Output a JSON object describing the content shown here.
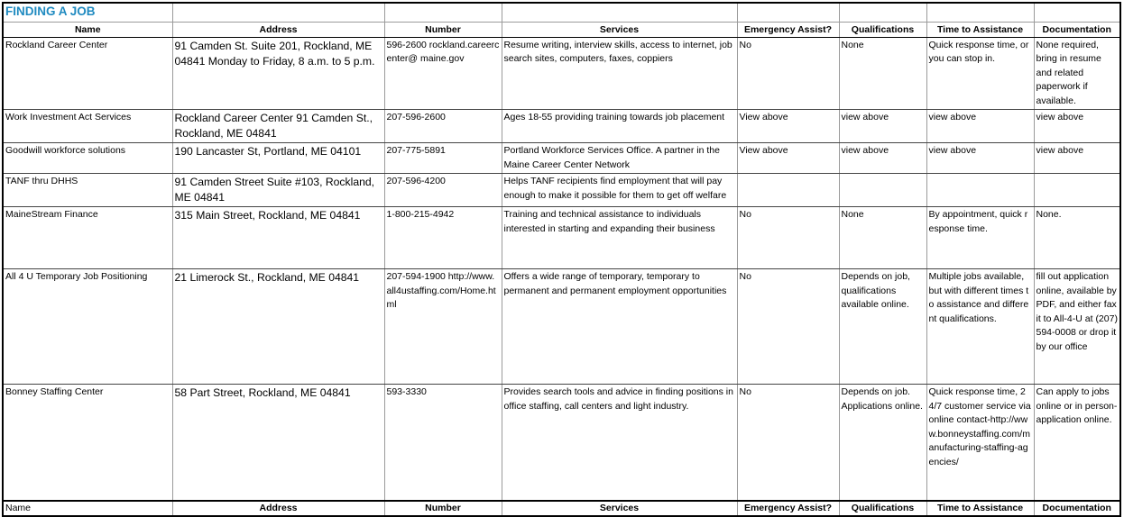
{
  "title": "FINDING A JOB",
  "columns": [
    "Name",
    "Address",
    "Number",
    "Services",
    "Emergency Assist?",
    "Qualifications",
    "Time to Assistance",
    "Documentation"
  ],
  "rows": [
    {
      "name": "Rockland Career Center",
      "address": "91 Camden St. Suite 201, Rockland, ME 04841     Monday to Friday, 8 a.m. to 5 p.m.",
      "number": "596-2600 rockland.careercenter@ maine.gov",
      "services": "Resume writing, interview skills, access to internet, job search sites, computers, faxes, coppiers",
      "emergency": "No",
      "qualifications": "None",
      "time": "Quick response time, or you can stop in.",
      "documentation": "None required, bring in resume and related paperwork if available."
    },
    {
      "name": "Work Investment Act Services",
      "address": "Rockland Career Center 91 Camden St., Rockland, ME 04841",
      "number": "207-596-2600",
      "services": "Ages 18-55 providing training towards job placement",
      "emergency": "View above",
      "qualifications": "view above",
      "time": "view above",
      "documentation": "view above"
    },
    {
      "name": "Goodwill workforce solutions",
      "address": "190 Lancaster St, Portland, ME 04101",
      "number": "207-775-5891",
      "services": "Portland Workforce Services Office. A partner in the Maine Career Center Network",
      "emergency": "View above",
      "qualifications": "view above",
      "time": "view above",
      "documentation": "view above"
    },
    {
      "name": "TANF thru DHHS",
      "address": "91 Camden Street Suite #103, Rockland, ME 04841",
      "number": "207-596-4200",
      "services": "Helps TANF recipients find employment that will pay enough to make it possible for them to get off welfare",
      "emergency": "",
      "qualifications": "",
      "time": "",
      "documentation": ""
    },
    {
      "name": "MaineStream Finance",
      "address": "315 Main Street, Rockland, ME  04841",
      "number": "1-800-215-4942",
      "services": "Training and technical assistance to individuals interested in starting and expanding their business",
      "emergency": "No",
      "qualifications": "None",
      "time": "By appointment, quick response time.",
      "documentation": "None."
    },
    {
      "name": "All 4 U Temporary Job Positioning",
      "address": "21 Limerock St., Rockland, ME 04841",
      "number": "207-594-1900 http://www.all4ustaffing.com/Home.html",
      "services": "Offers a wide range of temporary, temporary to permanent and permanent employment opportunities",
      "emergency": "No",
      "qualifications": "Depends on job, qualifications available online.",
      "time": "Multiple jobs available, but with different times to assistance and different qualifications.",
      "documentation": "fill out application online, available by PDF, and either fax it to All-4-U at (207) 594-0008 or drop it by our office"
    },
    {
      "name": "Bonney Staffing Center",
      "address": "58 Part Street, Rockland, ME  04841",
      "number": "593-3330",
      "services": "Provides search tools and advice in finding positions in office staffing, call centers and light industry.",
      "emergency": "No",
      "qualifications": "Depends on job. Applications online.",
      "time": "Quick response time, 24/7 customer service via online contact-http://www.bonneystaffing.com/manufacturing-staffing-agencies/",
      "documentation": "Can apply to jobs online or in person- application online."
    }
  ]
}
